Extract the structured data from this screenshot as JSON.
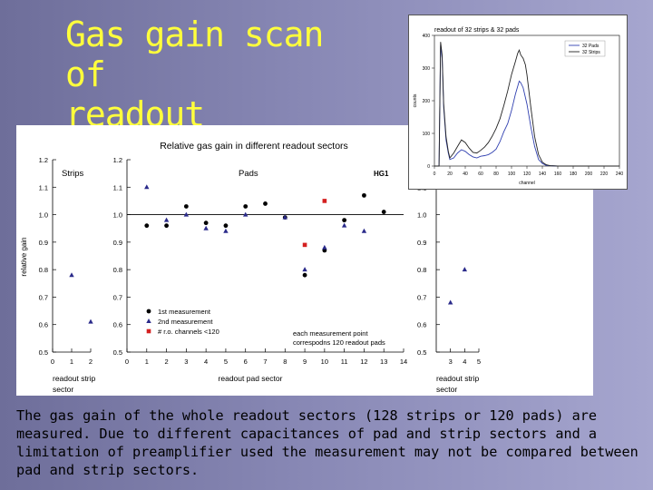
{
  "slide": {
    "title_line1": "Gas gain scan of",
    "title_line2": "readout sectors",
    "caption": "The gas gain of the whole readout sectors (128 strips or 120 pads) are measured. Due to different capacitances of pad and strip sectors and a limitation of preamplifier used the measurement may not be compared between pad and strip sectors.",
    "title_color": "#ffff3c"
  },
  "chart_data": [
    {
      "type": "scatter",
      "title": "Relative gas gain in different readout sectors",
      "ylabel": "relative gain",
      "ylim": [
        0.5,
        1.2
      ],
      "yticks": [
        "0.5",
        "0.6",
        "0.7",
        "0.8",
        "0.9",
        "1.0",
        "1.1",
        "1.2"
      ],
      "reference_line": 1.0,
      "legend": [
        "1st measurement",
        "2nd measurement",
        "# r.o. channels <120"
      ],
      "legend_placement": "bottom-left",
      "colors": {
        "first": "#000000",
        "second": "#2a2a8a",
        "reduced": "#d42020"
      },
      "note_line1": "each measurement point",
      "note_line2": "correspodns 120 readout pads",
      "panels": [
        {
          "label": "Strips",
          "xlabel_line1": "readout strip",
          "xlabel_line2": "sector",
          "xlim": [
            0,
            2
          ],
          "xticks": [
            "0",
            "1",
            "2"
          ],
          "series": [
            {
              "name": "2nd measurement",
              "marker": "triangle",
              "x": [
                1,
                2
              ],
              "y": [
                0.78,
                0.61
              ]
            }
          ]
        },
        {
          "label": "Pads",
          "tag": "HG1",
          "xlabel_line1": "readout pad sector",
          "xlabel_line2": "",
          "xlim": [
            0,
            14
          ],
          "xticks": [
            "0",
            "1",
            "2",
            "3",
            "4",
            "5",
            "6",
            "7",
            "8",
            "9",
            "10",
            "11",
            "12",
            "13",
            "14"
          ],
          "series": [
            {
              "name": "1st measurement",
              "marker": "circle",
              "x": [
                1,
                2,
                3,
                4,
                5,
                6,
                7,
                8,
                9,
                10,
                11,
                12,
                13
              ],
              "y": [
                0.96,
                0.96,
                1.03,
                0.97,
                0.96,
                1.03,
                1.04,
                0.99,
                0.78,
                0.87,
                0.98,
                1.07,
                1.01
              ]
            },
            {
              "name": "2nd measurement",
              "marker": "triangle",
              "x": [
                1,
                2,
                3,
                4,
                5,
                6,
                8,
                9,
                10,
                11,
                12
              ],
              "y": [
                1.1,
                0.98,
                1.0,
                0.95,
                0.94,
                1.0,
                0.99,
                0.8,
                0.88,
                0.96,
                0.94
              ]
            },
            {
              "name": "# r.o. channels <120",
              "marker": "square",
              "x": [
                9,
                10
              ],
              "y": [
                0.89,
                1.05
              ]
            }
          ]
        },
        {
          "label": "",
          "xlabel_line1": "readout strip",
          "xlabel_line2": "sector",
          "xlim": [
            2,
            5
          ],
          "xticks": [
            "3",
            "4",
            "5"
          ],
          "series": [
            {
              "name": "2nd measurement",
              "marker": "triangle",
              "x": [
                3,
                4
              ],
              "y": [
                0.68,
                0.8
              ]
            }
          ]
        }
      ]
    },
    {
      "type": "line",
      "title": "readout of 32 strips & 32 pads",
      "xlabel": "channel",
      "ylabel": "counts",
      "xlim": [
        0,
        240
      ],
      "ylim": [
        0,
        400
      ],
      "xticks": [
        "0",
        "20",
        "40",
        "60",
        "80",
        "100",
        "120",
        "140",
        "160",
        "180",
        "200",
        "220",
        "240"
      ],
      "yticks": [
        "0",
        "100",
        "200",
        "300",
        "400"
      ],
      "legend_placement": "top-right",
      "series": [
        {
          "name": "32 Pads",
          "color": "#3040b0",
          "x": [
            0,
            6,
            8,
            10,
            12,
            15,
            18,
            20,
            25,
            30,
            35,
            40,
            45,
            50,
            55,
            60,
            65,
            70,
            75,
            80,
            85,
            90,
            95,
            100,
            105,
            110,
            112,
            115,
            120,
            125,
            130,
            135,
            140,
            145,
            150,
            160,
            170,
            200,
            240
          ],
          "y": [
            0,
            0,
            370,
            330,
            180,
            80,
            40,
            20,
            25,
            40,
            50,
            45,
            35,
            28,
            25,
            30,
            32,
            35,
            42,
            52,
            75,
            105,
            130,
            170,
            220,
            260,
            255,
            240,
            190,
            120,
            60,
            20,
            8,
            2,
            1,
            0,
            0,
            0,
            0
          ]
        },
        {
          "name": "32 Strips",
          "color": "#222222",
          "x": [
            0,
            6,
            8,
            10,
            12,
            15,
            18,
            20,
            25,
            30,
            35,
            40,
            45,
            50,
            55,
            60,
            65,
            70,
            75,
            80,
            85,
            90,
            95,
            100,
            105,
            108,
            110,
            112,
            115,
            118,
            120,
            125,
            130,
            135,
            140,
            145,
            150,
            160,
            170,
            200,
            240
          ],
          "y": [
            0,
            0,
            380,
            340,
            190,
            90,
            45,
            25,
            40,
            60,
            80,
            72,
            55,
            42,
            40,
            48,
            58,
            72,
            92,
            115,
            145,
            185,
            230,
            280,
            320,
            345,
            355,
            340,
            330,
            310,
            280,
            180,
            90,
            35,
            12,
            4,
            1,
            0,
            0,
            0,
            0
          ]
        }
      ]
    }
  ]
}
